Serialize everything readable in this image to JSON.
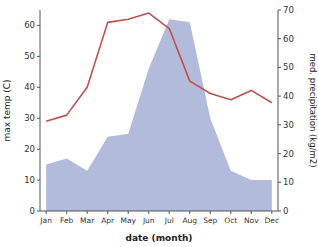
{
  "chart_data": {
    "type": "line",
    "categories": [
      "Jan",
      "Feb",
      "Mar",
      "Apr",
      "May",
      "Jun",
      "Jul",
      "Aug",
      "Sep",
      "Oct",
      "Nov",
      "Dec"
    ],
    "series": [
      {
        "type": "area",
        "color": "#aab4d8",
        "values": [
          15,
          17,
          13,
          24,
          25,
          46,
          62,
          61,
          30,
          13,
          10,
          10
        ]
      },
      {
        "type": "line",
        "color": "#c0504d",
        "values": [
          29,
          31,
          40,
          61,
          62,
          64,
          59,
          42,
          38,
          36,
          39,
          35
        ]
      }
    ],
    "ylim": [
      0,
      65
    ],
    "yticks": [
      0,
      10,
      20,
      30,
      40,
      50,
      60
    ],
    "y2lim": [
      0,
      70
    ],
    "y2ticks": [
      0,
      10,
      20,
      30,
      40,
      50,
      60,
      70
    ],
    "x_label": "date (month)",
    "y_label": "max temp (C)",
    "y2_label": "med. precipitation (kg/m2)",
    "grid": false
  }
}
